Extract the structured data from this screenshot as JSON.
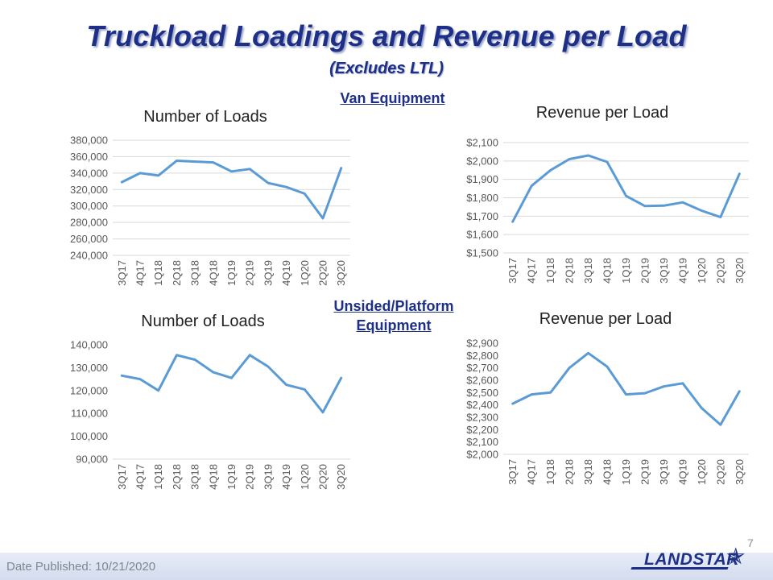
{
  "slide": {
    "title": "Truckload Loadings and Revenue per Load",
    "subtitle": "(Excludes LTL)",
    "section_van": "Van Equipment",
    "section_unsided": "Unsided/Platform Equipment",
    "footer": "Date Published:  10/21/2020",
    "page_number": "7",
    "logo_text": "LANDSTAR",
    "logo_icon": "star-icon"
  },
  "colors": {
    "title": "#1d2f86",
    "line": "#5b9bd5",
    "grid": "#d9d9d9",
    "axis_text": "#595959"
  },
  "chart_data": [
    {
      "type": "line",
      "title": "Number of Loads",
      "categories": [
        "3Q17",
        "4Q17",
        "1Q18",
        "2Q18",
        "3Q18",
        "4Q18",
        "1Q19",
        "2Q19",
        "3Q19",
        "4Q19",
        "1Q20",
        "2Q20",
        "3Q20"
      ],
      "values": [
        329000,
        340000,
        337000,
        355000,
        354000,
        353000,
        342000,
        345000,
        328000,
        323000,
        315000,
        285000,
        346000
      ],
      "ylim": [
        240000,
        380000
      ],
      "yticks": [
        240000,
        260000,
        280000,
        300000,
        320000,
        340000,
        360000,
        380000
      ],
      "yformat": "number",
      "grid": true,
      "legend": "none"
    },
    {
      "type": "line",
      "title": "Revenue per Load",
      "categories": [
        "3Q17",
        "4Q17",
        "1Q18",
        "2Q18",
        "3Q18",
        "4Q18",
        "1Q19",
        "2Q19",
        "3Q19",
        "4Q19",
        "1Q20",
        "2Q20",
        "3Q20"
      ],
      "values": [
        1670,
        1865,
        1950,
        2010,
        2030,
        1995,
        1810,
        1755,
        1757,
        1775,
        1730,
        1695,
        1930
      ],
      "ylim": [
        1500,
        2100
      ],
      "yticks": [
        1500,
        1600,
        1700,
        1800,
        1900,
        2000,
        2100
      ],
      "yformat": "currency",
      "grid": true,
      "legend": "none"
    },
    {
      "type": "line",
      "title": "Number of Loads",
      "categories": [
        "3Q17",
        "4Q17",
        "1Q18",
        "2Q18",
        "3Q18",
        "4Q18",
        "1Q19",
        "2Q19",
        "3Q19",
        "4Q19",
        "1Q20",
        "2Q20",
        "3Q20"
      ],
      "values": [
        126500,
        125000,
        120000,
        135500,
        133500,
        128000,
        125500,
        135500,
        130500,
        122500,
        120500,
        110500,
        125500
      ],
      "ylim": [
        90000,
        140000
      ],
      "yticks": [
        90000,
        100000,
        110000,
        120000,
        130000,
        140000
      ],
      "yformat": "number",
      "grid": false,
      "legend": "none"
    },
    {
      "type": "line",
      "title": "Revenue per Load",
      "categories": [
        "3Q17",
        "4Q17",
        "1Q18",
        "2Q18",
        "3Q18",
        "4Q18",
        "1Q19",
        "2Q19",
        "3Q19",
        "4Q19",
        "1Q20",
        "2Q20",
        "3Q20"
      ],
      "values": [
        2410,
        2485,
        2500,
        2700,
        2820,
        2710,
        2485,
        2495,
        2550,
        2575,
        2375,
        2240,
        2510
      ],
      "ylim": [
        2000,
        2900
      ],
      "yticks": [
        2000,
        2100,
        2200,
        2300,
        2400,
        2500,
        2600,
        2700,
        2800,
        2900
      ],
      "yformat": "currency",
      "grid": false,
      "legend": "none"
    }
  ]
}
